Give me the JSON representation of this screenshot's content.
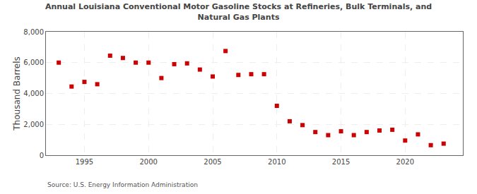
{
  "chart_data": {
    "type": "scatter",
    "title": "Annual Louisiana Conventional Motor Gasoline Stocks at Refineries, Bulk Terminals, and\nNatural Gas Plants",
    "ylabel": "Thousand Barrels",
    "annotations": [
      "Source: U.S. Energy Information Administration"
    ],
    "x": [
      1993,
      1994,
      1995,
      1996,
      1997,
      1998,
      1999,
      2000,
      2001,
      2002,
      2003,
      2004,
      2005,
      2006,
      2007,
      2008,
      2009,
      2010,
      2011,
      2012,
      2013,
      2014,
      2015,
      2016,
      2017,
      2018,
      2019,
      2020,
      2021,
      2022,
      2023
    ],
    "values": [
      6000,
      4450,
      4750,
      4600,
      6450,
      6300,
      6000,
      6000,
      5000,
      5900,
      5950,
      5550,
      5100,
      6750,
      5200,
      5250,
      5250,
      3200,
      2200,
      1950,
      1500,
      1300,
      1550,
      1300,
      1500,
      1600,
      1650,
      950,
      1350,
      650,
      750
    ],
    "color": "#cc0000",
    "marker": "square",
    "xlim": [
      1992,
      2024.5
    ],
    "ylim": [
      0,
      8000
    ],
    "xticks": [
      1995,
      2000,
      2005,
      2010,
      2015,
      2020
    ],
    "yticks": [
      0,
      {
        "value": 2000,
        "label": "2,000"
      },
      {
        "value": 4000,
        "label": "4,000"
      },
      {
        "value": 6000,
        "label": "6,000"
      },
      {
        "value": 8000,
        "label": "8,000"
      }
    ],
    "grid": true
  }
}
